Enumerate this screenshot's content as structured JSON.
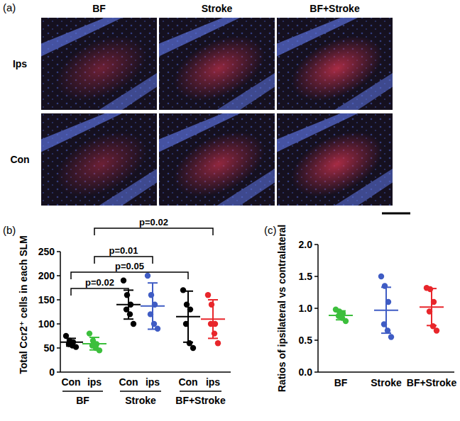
{
  "panel_a": {
    "label": "(a)",
    "columns": [
      "BF",
      "Stroke",
      "BF+Stroke"
    ],
    "rows": [
      "Ips",
      "Con"
    ]
  },
  "chart_data": [
    {
      "type": "scatter",
      "label": "(b)",
      "y_label": "Total Ccr2⁺ cells in each SLM",
      "groups": [
        "BF",
        "Stroke",
        "BF+Stroke"
      ],
      "categories": [
        "Con",
        "ips",
        "Con",
        "ips",
        "Con",
        "ips"
      ],
      "colors": [
        "#000000",
        "#3cbf3c",
        "#000000",
        "#3f5cc4",
        "#000000",
        "#e8262b"
      ],
      "points": [
        [
          75,
          65,
          62,
          58,
          55,
          52
        ],
        [
          80,
          65,
          58,
          55,
          50,
          45
        ],
        [
          190,
          160,
          140,
          130,
          120,
          100
        ],
        [
          200,
          160,
          140,
          120,
          100,
          90
        ],
        [
          170,
          140,
          130,
          100,
          60,
          50
        ],
        [
          160,
          140,
          100,
          100,
          80,
          60
        ]
      ],
      "means": [
        62,
        59,
        140,
        137,
        115,
        110
      ],
      "sd": [
        8,
        13,
        30,
        48,
        53,
        40
      ],
      "ylim": [
        0,
        250
      ],
      "yticks": [
        0,
        50,
        100,
        150,
        200,
        250
      ],
      "annotations": [
        {
          "text": "p=0.02",
          "from": 1,
          "to": 5
        },
        {
          "text": "p=0.01",
          "from": 1,
          "to": 3
        },
        {
          "text": "p=0.05",
          "from": 0,
          "to": 4
        },
        {
          "text": "p=0.02",
          "from": 0,
          "to": 2
        }
      ]
    },
    {
      "type": "scatter",
      "label": "(c)",
      "y_label": "Ratios of ipsilateral vs contralateral",
      "categories": [
        "BF",
        "Stroke",
        "BF+Stroke"
      ],
      "colors": [
        "#3cbf3c",
        "#3f5cc4",
        "#e8262b"
      ],
      "points": [
        [
          0.98,
          0.95,
          0.92,
          0.88,
          0.85,
          0.8
        ],
        [
          1.5,
          1.35,
          1.1,
          0.75,
          0.65,
          0.55
        ],
        [
          1.32,
          1.3,
          1.1,
          0.95,
          0.72,
          0.65
        ]
      ],
      "means": [
        0.89,
        0.97,
        1.02
      ],
      "sd": [
        0.07,
        0.36,
        0.29
      ],
      "ylim": [
        0,
        2
      ],
      "yticks": [
        {
          "value": 0,
          "label": "0.0"
        },
        {
          "value": 0.5,
          "label": "0.5"
        },
        {
          "value": 1,
          "label": "1.0"
        },
        {
          "value": 1.5,
          "label": "1.5"
        },
        {
          "value": 2,
          "label": "2.0"
        }
      ]
    }
  ]
}
